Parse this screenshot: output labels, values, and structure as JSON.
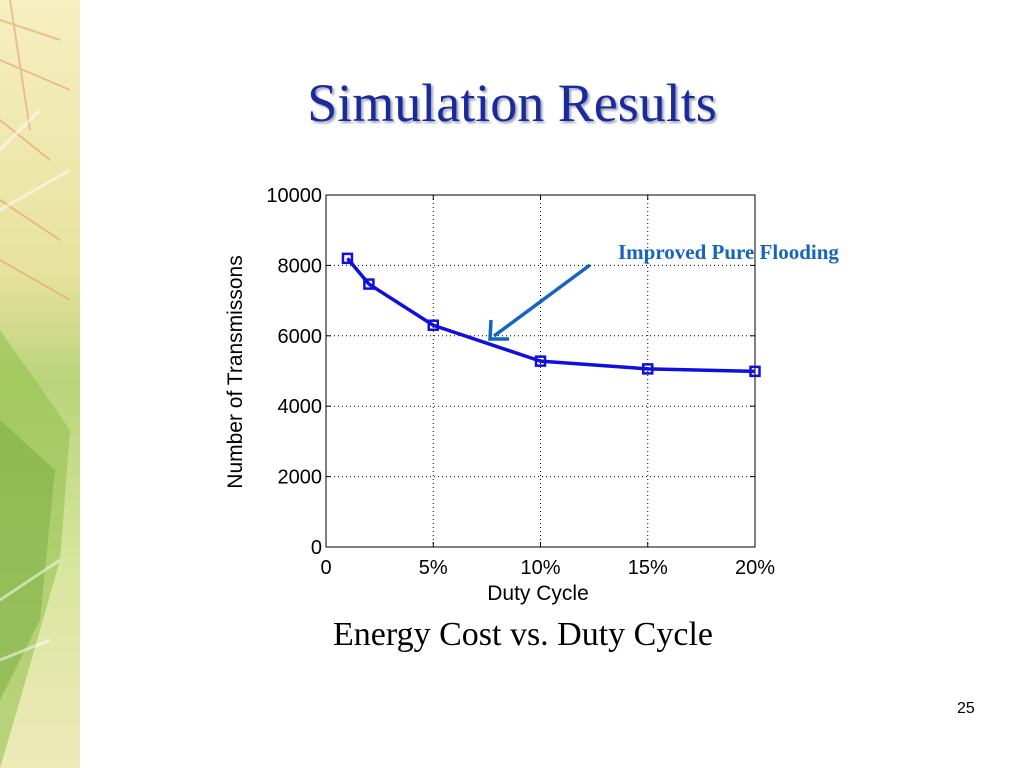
{
  "slide": {
    "title": "Simulation Results",
    "caption": "Energy Cost vs. Duty Cycle",
    "page_number": "25",
    "annotation": "Improved Pure Flooding",
    "colors": {
      "title": "#1a2a9a",
      "series": "#1010dd",
      "annotation": "#1565c0"
    }
  },
  "chart_data": {
    "type": "line",
    "title": "",
    "xlabel": "Duty Cycle",
    "ylabel": "Number of Transmissons",
    "xlim": [
      0,
      20
    ],
    "ylim": [
      0,
      10000
    ],
    "x_ticks": [
      0,
      5,
      10,
      15,
      20
    ],
    "x_tick_labels": [
      "0",
      "5%",
      "10%",
      "15%",
      "20%"
    ],
    "y_ticks": [
      0,
      2000,
      4000,
      6000,
      8000,
      10000
    ],
    "y_tick_labels": [
      "0",
      "2000",
      "4000",
      "6000",
      "8000",
      "10000"
    ],
    "grid": true,
    "series": [
      {
        "name": "Improved Pure Flooding",
        "marker": "square",
        "color": "#1010dd",
        "x": [
          1,
          2,
          5,
          10,
          15,
          20
        ],
        "y": [
          8200,
          7470,
          6300,
          5280,
          5060,
          4990
        ]
      }
    ]
  }
}
